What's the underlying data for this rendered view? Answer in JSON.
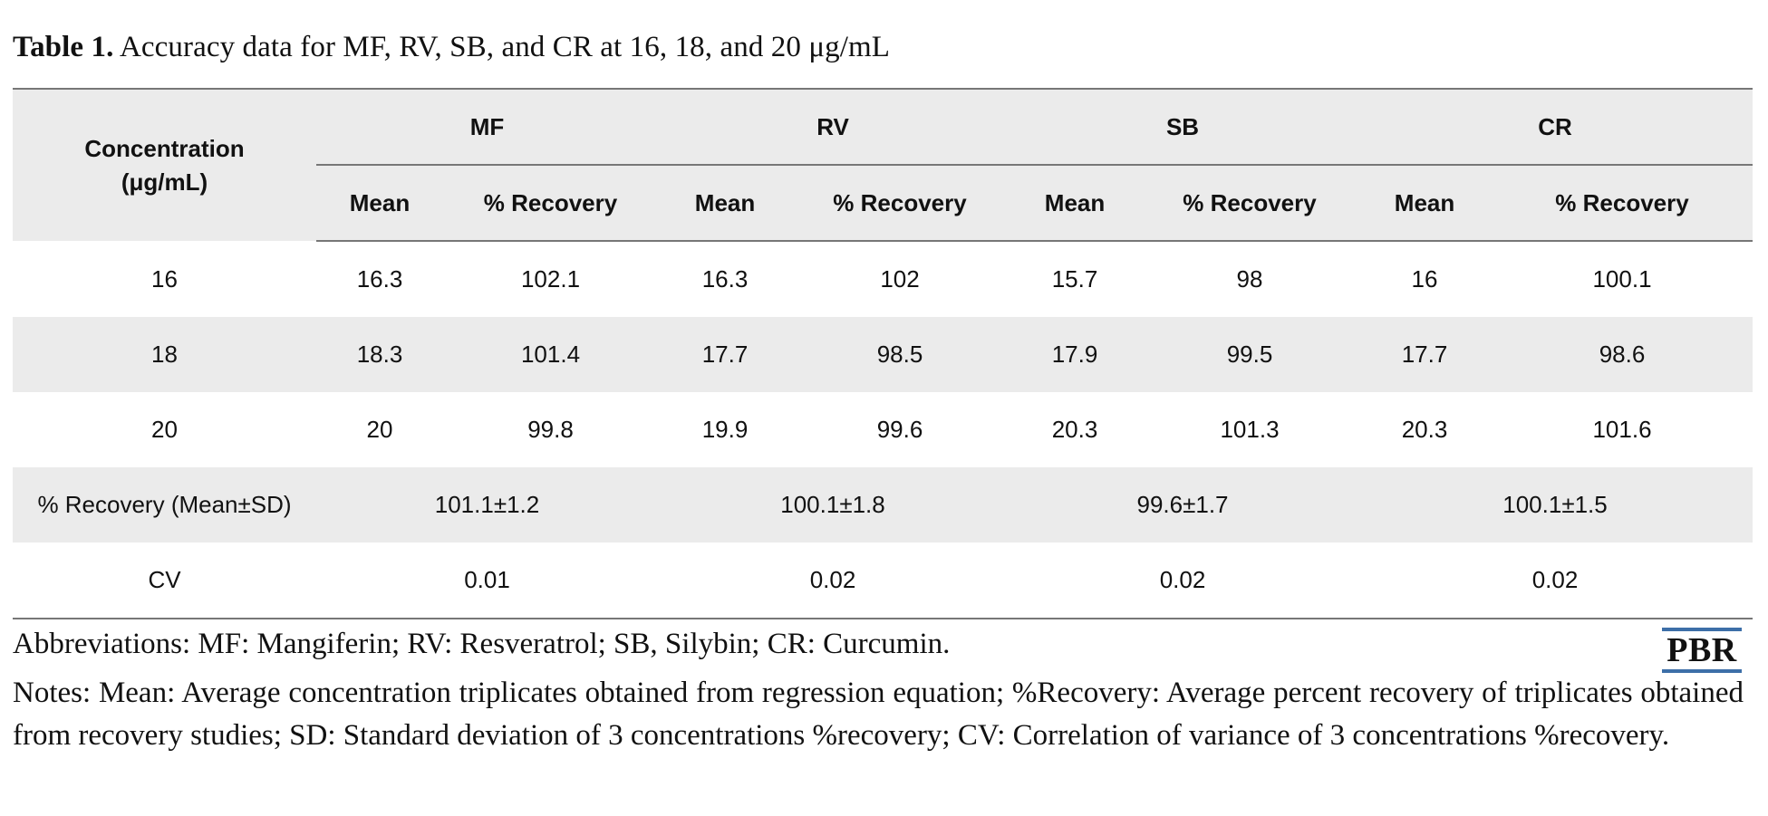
{
  "caption": {
    "label": "Table 1.",
    "text": " Accuracy data for MF, RV, SB, and CR at 16, 18, and 20 μg/mL"
  },
  "table": {
    "row_header": "Concentration (μg/mL)",
    "groups": [
      "MF",
      "RV",
      "SB",
      "CR"
    ],
    "sub_headers": [
      "Mean",
      "% Recovery"
    ],
    "rows": [
      [
        "16",
        "16.3",
        "102.1",
        "16.3",
        "102",
        "15.7",
        "98",
        "16",
        "100.1"
      ],
      [
        "18",
        "18.3",
        "101.4",
        "17.7",
        "98.5",
        "17.9",
        "99.5",
        "17.7",
        "98.6"
      ],
      [
        "20",
        "20",
        "99.8",
        "19.9",
        "99.6",
        "20.3",
        "101.3",
        "20.3",
        "101.6"
      ]
    ],
    "summary_rows": [
      {
        "label": "% Recovery (Mean±SD)",
        "values": [
          "101.1±1.2",
          "100.1±1.8",
          "99.6±1.7",
          "100.1±1.5"
        ]
      },
      {
        "label": "CV",
        "values": [
          "0.01",
          "0.02",
          "0.02",
          "0.02"
        ]
      }
    ]
  },
  "abbreviations": "Abbreviations: MF: Mangiferin; RV: Resveratrol; SB, Silybin; CR: Curcumin.",
  "notes": "Notes: Mean: Average concentration triplicates obtained from regression equation; %Recovery: Average percent recovery of triplicates obtained from recovery studies; SD: Standard deviation of 3 concentrations %recovery; CV: Correlation of variance of 3 concentrations %recovery.",
  "logo": {
    "text": "PBR",
    "accent_color": "#3d6fa8"
  }
}
